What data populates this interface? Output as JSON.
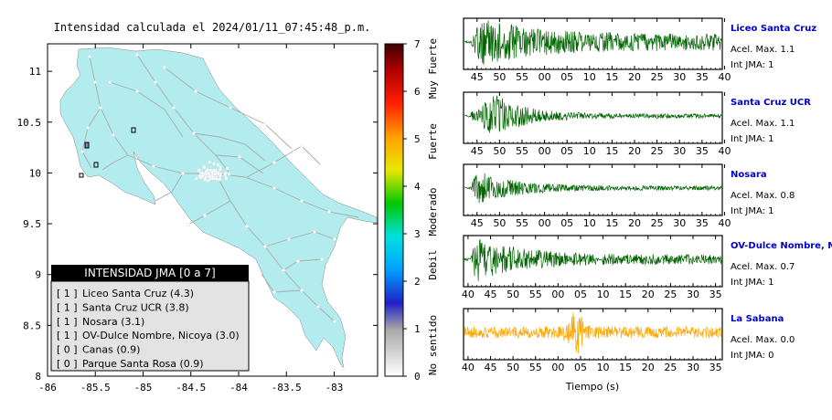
{
  "map": {
    "title": "Intensidad calculada el 2024/01/11_07:45:48_p.m.",
    "x_ticks": [
      "-86",
      "-85.5",
      "-85",
      "-84.5",
      "-84",
      "-83.5",
      "-83"
    ],
    "y_ticks": [
      "11",
      "10.5",
      "10",
      "9.5",
      "9",
      "8.5",
      "8"
    ],
    "land_color": "#b2ecee",
    "legend": {
      "header": "INTENSIDAD JMA [0 a 7]",
      "items": [
        {
          "int": "[ 1 ]",
          "label": "Liceo Santa Cruz (4.3)"
        },
        {
          "int": "[ 1 ]",
          "label": "Santa Cruz UCR (3.8)"
        },
        {
          "int": "[ 1 ]",
          "label": "Nosara (3.1)"
        },
        {
          "int": "[ 1 ]",
          "label": "OV-Dulce Nombre, Nicoya (3.0)"
        },
        {
          "int": "[ 0 ]",
          "label": "Canas (0.9)"
        },
        {
          "int": "[ 0 ]",
          "label": "Parque Santa Rosa (0.9)"
        }
      ]
    }
  },
  "colorbar": {
    "ticks": [
      "7",
      "6",
      "5",
      "4",
      "3",
      "2",
      "1",
      "0"
    ],
    "labels": [
      "Muy Fuerte",
      "Fuerte",
      "Moderado",
      "Debil",
      "No sentido"
    ]
  },
  "chart_data": {
    "type": "line",
    "xlabel": "Tiempo (s)",
    "stations": [
      {
        "name": "Liceo Santa Cruz",
        "acel": "Acel. Max. 1.1",
        "jma": "Int JMA: 1",
        "color": "#006400",
        "x_ticks": [
          "45",
          "50",
          "55",
          "00",
          "05",
          "10",
          "15",
          "20",
          "25",
          "30",
          "35",
          "40"
        ],
        "tick_start": 45,
        "axis_start": 42
      },
      {
        "name": "Santa Cruz UCR",
        "acel": "Acel. Max. 1.1",
        "jma": "Int JMA: 1",
        "color": "#006400",
        "x_ticks": [
          "45",
          "50",
          "55",
          "00",
          "05",
          "10",
          "15",
          "20",
          "25",
          "30",
          "35",
          "40"
        ],
        "tick_start": 45,
        "axis_start": 42
      },
      {
        "name": "Nosara",
        "acel": "Acel. Max. 0.8",
        "jma": "Int JMA: 1",
        "color": "#006400",
        "x_ticks": [
          "45",
          "50",
          "55",
          "00",
          "05",
          "10",
          "15",
          "20",
          "25",
          "30",
          "35",
          "40"
        ],
        "tick_start": 45,
        "axis_start": 42
      },
      {
        "name": "OV-Dulce Nombre, Nicoya",
        "acel": "Acel. Max. 0.7",
        "jma": "Int JMA: 1",
        "color": "#006400",
        "x_ticks": [
          "40",
          "45",
          "50",
          "55",
          "00",
          "05",
          "10",
          "15",
          "20",
          "25",
          "30",
          "35"
        ],
        "tick_start": 40,
        "axis_start": 39
      },
      {
        "name": "La Sabana",
        "acel": "Acel. Max. 0.0",
        "jma": "Int JMA: 0",
        "color": "#ffa500",
        "x_ticks": [
          "40",
          "45",
          "50",
          "55",
          "00",
          "05",
          "10",
          "15",
          "20",
          "25",
          "30",
          "35"
        ],
        "tick_start": 40,
        "axis_start": 39
      }
    ]
  }
}
